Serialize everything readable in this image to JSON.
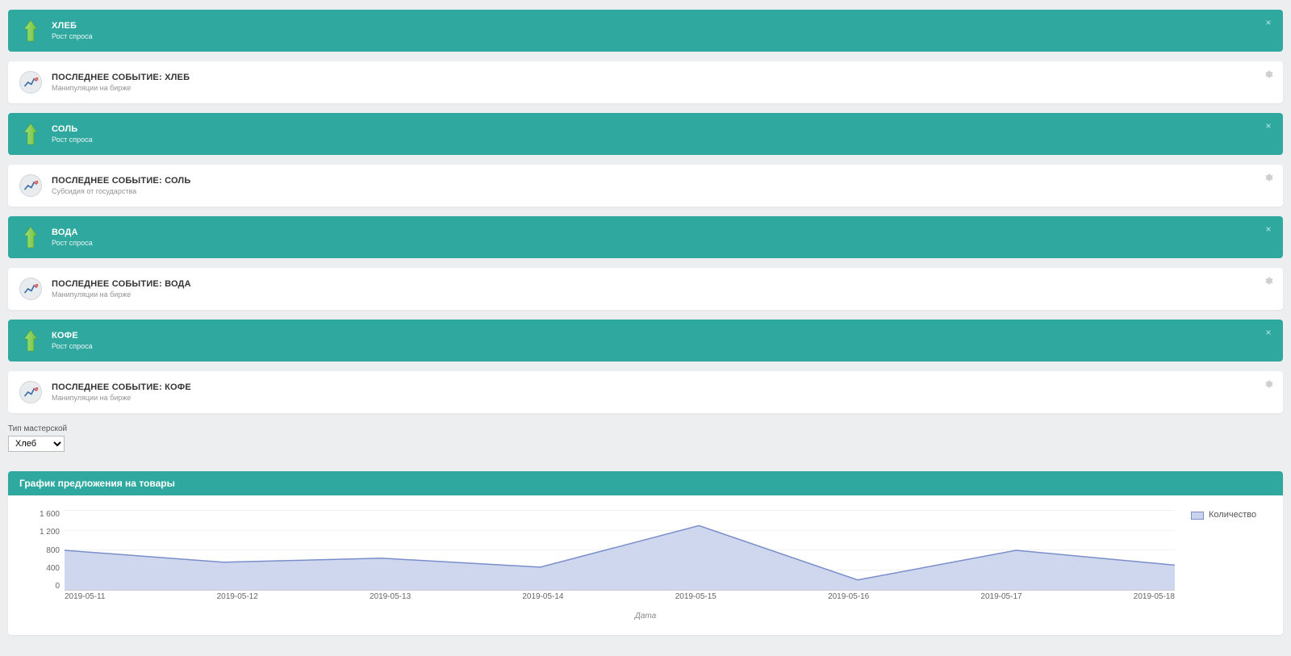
{
  "page_bg": "#eceeef",
  "colors": {
    "teal": "#2fa8a0",
    "white": "#ffffff",
    "grid": "#f1f1f1",
    "axis": "#cccccc",
    "text_muted": "#888888",
    "series_fill": "#c9d3ec",
    "series_stroke": "#7a8fc9",
    "arrow_light": "#a4e27a",
    "arrow_dark": "#6fbf3f"
  },
  "panels": [
    {
      "type": "teal",
      "icon": "arrow-up",
      "title": "ХЛЕБ",
      "subtitle": "Рост спроса",
      "close": "x"
    },
    {
      "type": "white",
      "icon": "chart-circle",
      "title": "ПОСЛЕДНЕЕ СОБЫТИЕ: ХЛЕБ",
      "subtitle": "Манипуляции на бирже",
      "close": "gear"
    },
    {
      "type": "teal",
      "icon": "arrow-up",
      "title": "СОЛЬ",
      "subtitle": "Рост спроса",
      "close": "x"
    },
    {
      "type": "white",
      "icon": "chart-circle",
      "title": "ПОСЛЕДНЕЕ СОБЫТИЕ: СОЛЬ",
      "subtitle": "Субсидия от государства",
      "close": "gear"
    },
    {
      "type": "teal",
      "icon": "arrow-up",
      "title": "ВОДА",
      "subtitle": "Рост спроса",
      "close": "x"
    },
    {
      "type": "white",
      "icon": "chart-circle",
      "title": "ПОСЛЕДНЕЕ СОБЫТИЕ: ВОДА",
      "subtitle": "Манипуляции на бирже",
      "close": "gear"
    },
    {
      "type": "teal",
      "icon": "arrow-up",
      "title": "КОФЕ",
      "subtitle": "Рост спроса",
      "close": "x"
    },
    {
      "type": "white",
      "icon": "chart-circle",
      "title": "ПОСЛЕДНЕЕ СОБЫТИЕ: КОФЕ",
      "subtitle": "Манипуляции на бирже",
      "close": "gear"
    }
  ],
  "filter": {
    "label": "Тип мастерской",
    "selected": "Хлеб",
    "options": [
      "Хлеб",
      "Соль",
      "Вода",
      "Кофе"
    ]
  },
  "chart": {
    "type": "area",
    "title": "График предложения на товары",
    "legend_label": "Количество",
    "x_caption": "Дата",
    "x_labels": [
      "2019-05-11",
      "2019-05-12",
      "2019-05-13",
      "2019-05-14",
      "2019-05-15",
      "2019-05-16",
      "2019-05-17",
      "2019-05-18"
    ],
    "y_ticks": [
      0,
      400,
      800,
      1200,
      1600
    ],
    "y_tick_labels": [
      "0",
      "400",
      "800",
      "1 200",
      "1 600"
    ],
    "ylim": [
      0,
      1600
    ],
    "values": [
      800,
      560,
      640,
      460,
      1300,
      200,
      800,
      500
    ],
    "series_fill": "#c9d3ec",
    "series_stroke": "#7a8fc9",
    "stroke_width": 1.5,
    "fill_opacity": 0.9,
    "grid_color": "#f1f1f1",
    "axis_color": "#cccccc",
    "label_fontsize": 10,
    "title_fontsize": 12,
    "background_color": "#ffffff"
  }
}
